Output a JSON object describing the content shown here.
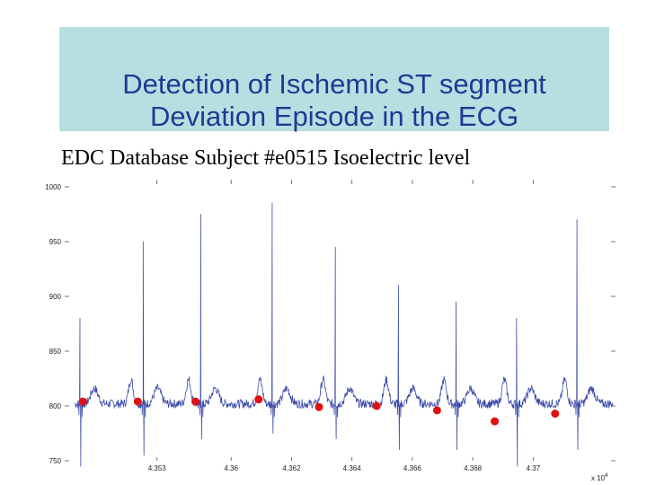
{
  "slide": {
    "title_line1": "Detection of Ischemic ST segment",
    "title_line2": "Deviation Episode in the ECG",
    "subtitle": "EDC Database Subject #e0515 Isoelectric level"
  },
  "colors": {
    "title_box": "#b7dfe1",
    "title_text": "#1f3a93",
    "signal": "#3a4aa8",
    "marker": "#e01010"
  },
  "chart_data": {
    "type": "line",
    "title": "",
    "xlabel": "",
    "ylabel": "",
    "x_multiplier_label": "x 10",
    "x_multiplier_exponent": "4",
    "xlim": [
      43.522,
      43.72
    ],
    "ylim": [
      750,
      1000
    ],
    "x_ticks": [
      43.553,
      43.58,
      43.602,
      43.624,
      43.646,
      43.668,
      43.69
    ],
    "x_tick_labels": [
      "4.353",
      "4.36",
      "4.362",
      "4.364",
      "4.366",
      "4.368",
      "4.37"
    ],
    "y_ticks": [
      750,
      800,
      850,
      900,
      950,
      1000
    ],
    "y_tick_labels": [
      "750",
      "800",
      "850",
      "900",
      "950",
      "1000"
    ],
    "beats": [
      {
        "t": 43.525,
        "r_peak": 880,
        "s_min": 745
      },
      {
        "t": 43.548,
        "r_peak": 950,
        "s_min": 755
      },
      {
        "t": 43.569,
        "r_peak": 975,
        "s_min": 770
      },
      {
        "t": 43.595,
        "r_peak": 985,
        "s_min": 775
      },
      {
        "t": 43.618,
        "r_peak": 945,
        "s_min": 770
      },
      {
        "t": 43.641,
        "r_peak": 910,
        "s_min": 760
      },
      {
        "t": 43.662,
        "r_peak": 895,
        "s_min": 760
      },
      {
        "t": 43.684,
        "r_peak": 880,
        "s_min": 745
      },
      {
        "t": 43.706,
        "r_peak": 970,
        "s_min": 760
      }
    ],
    "isoelectric_points": [
      {
        "x": 43.526,
        "y": 804
      },
      {
        "x": 43.546,
        "y": 804
      },
      {
        "x": 43.567,
        "y": 804
      },
      {
        "x": 43.59,
        "y": 806
      },
      {
        "x": 43.612,
        "y": 799
      },
      {
        "x": 43.633,
        "y": 800
      },
      {
        "x": 43.655,
        "y": 796
      },
      {
        "x": 43.676,
        "y": 786
      },
      {
        "x": 43.698,
        "y": 793
      }
    ]
  }
}
